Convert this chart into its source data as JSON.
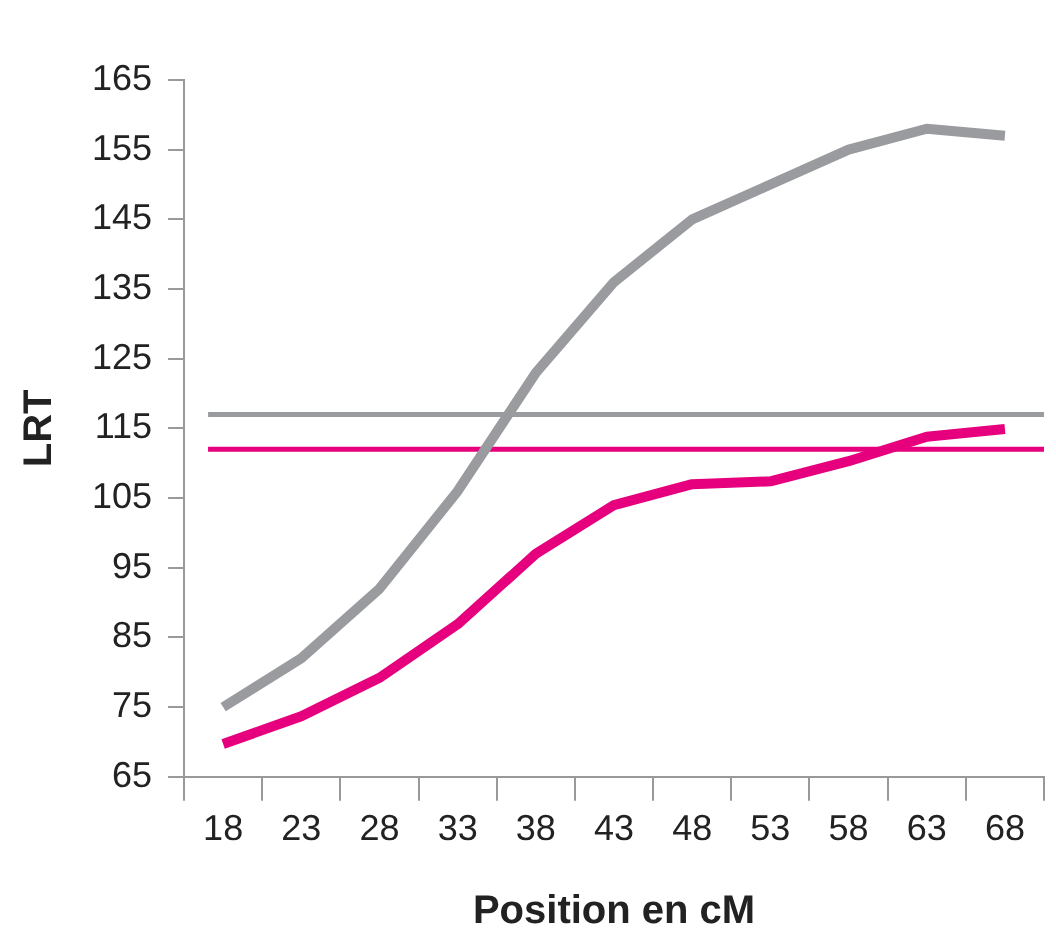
{
  "chart_data": {
    "type": "line",
    "xlabel": "Position en cM",
    "ylabel": "LRT",
    "categories": [
      "18",
      "23",
      "28",
      "33",
      "38",
      "43",
      "48",
      "53",
      "58",
      "63",
      "68"
    ],
    "series": [
      {
        "color": "#9a9b9f",
        "values": [
          75,
          82,
          92,
          106,
          123,
          136,
          145,
          150,
          155,
          158,
          157
        ]
      },
      {
        "color": "#e6007e",
        "values": [
          69.7,
          73.7,
          79.2,
          86.9,
          97,
          104,
          107,
          107.4,
          110.3,
          113.8,
          114.9
        ]
      }
    ],
    "ref_lines": [
      {
        "axis": "y",
        "value": 117,
        "color": "#9a9b9f"
      },
      {
        "axis": "y",
        "value": 112,
        "color": "#e6007e"
      }
    ],
    "ylim": [
      65,
      165
    ],
    "yticks": [
      65,
      75,
      85,
      95,
      105,
      115,
      125,
      135,
      145,
      155,
      165
    ],
    "grid": false,
    "legend": false,
    "marker": "none",
    "line_style": "solid"
  }
}
